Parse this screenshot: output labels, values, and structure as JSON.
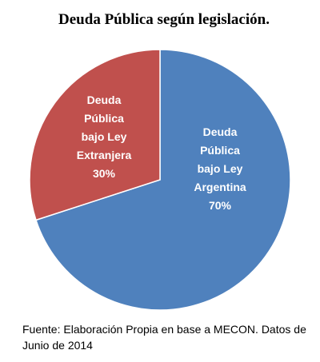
{
  "chart_data": {
    "type": "pie",
    "title": "Deuda Pública según legislación.",
    "categories": [
      "Deuda Pública bajo Ley Argentina",
      "Deuda Pública bajo Ley Extranjera"
    ],
    "values": [
      70,
      30
    ],
    "value_labels": [
      "70%",
      "30%"
    ],
    "colors": [
      "#4f81bd",
      "#c0504d"
    ],
    "source": "Fuente: Elaboración Propia en base a MECON. Datos de Junio de 2014"
  }
}
